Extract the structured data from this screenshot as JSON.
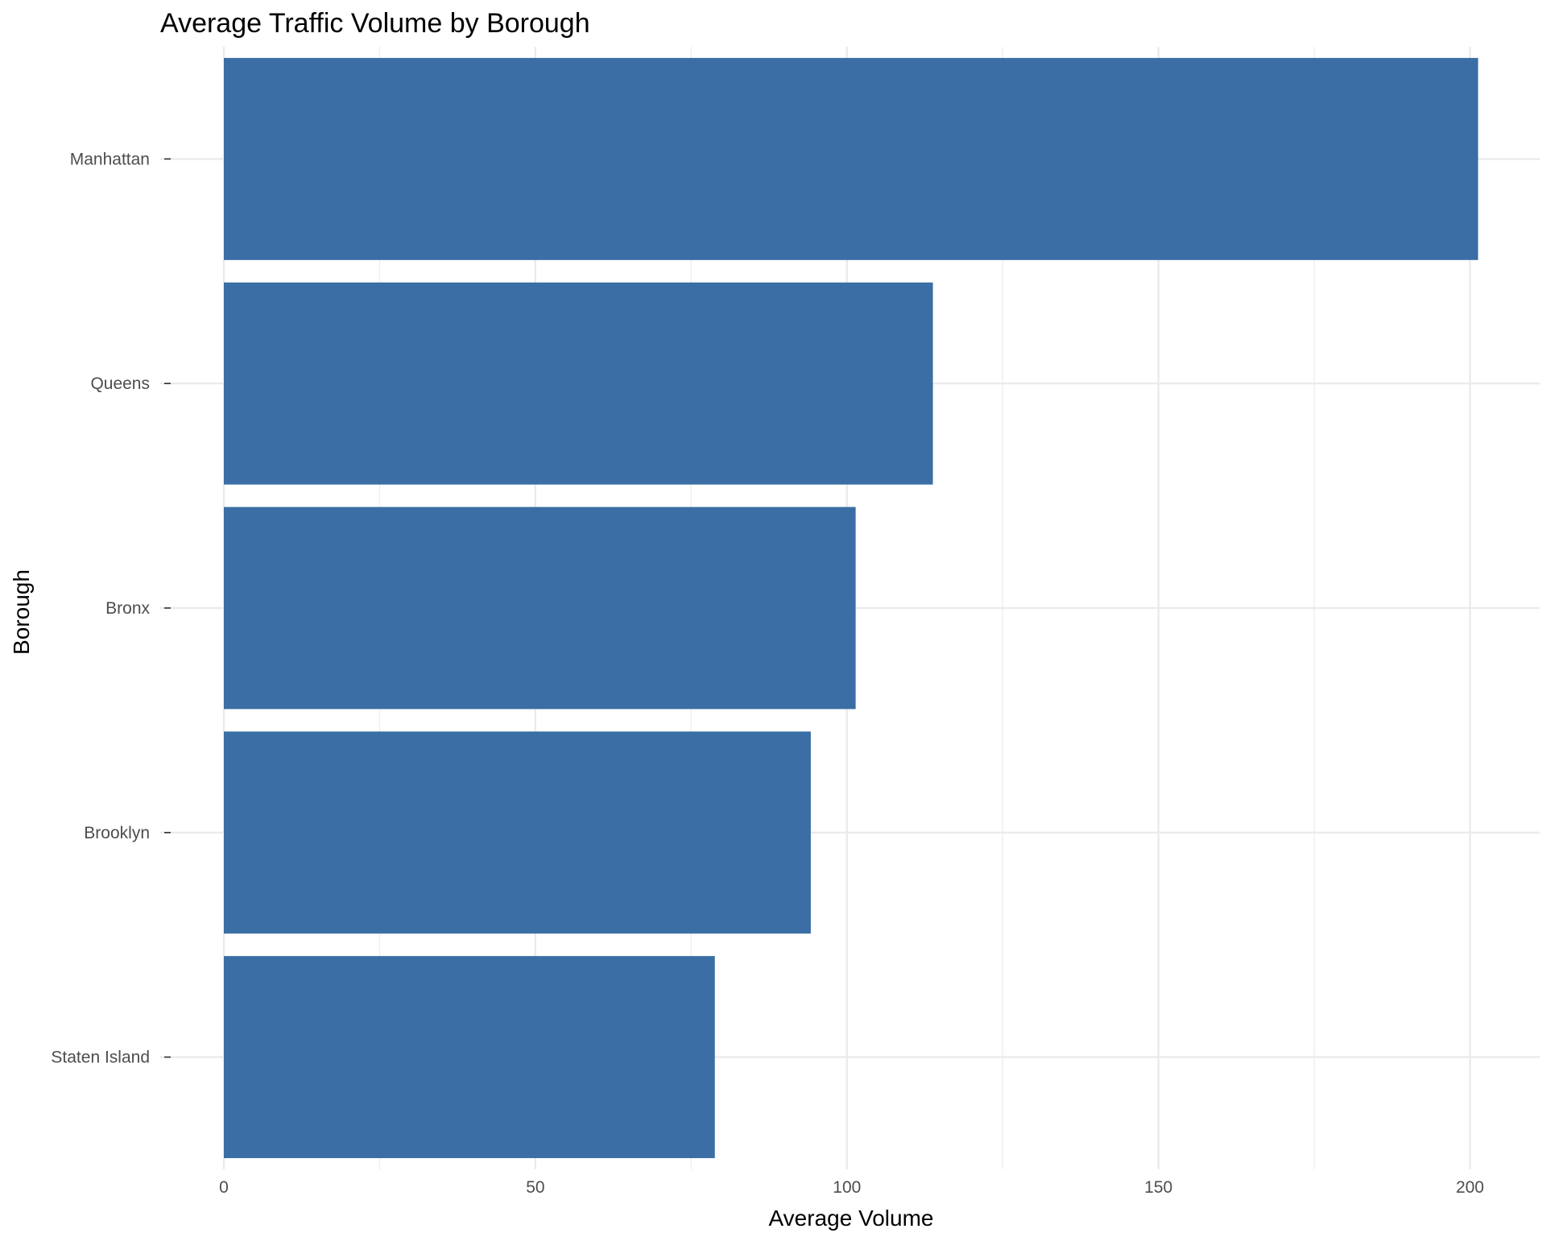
{
  "chart_data": {
    "type": "bar",
    "orientation": "horizontal",
    "title": "Average Traffic Volume by Borough",
    "xlabel": "Average Volume",
    "ylabel": "Borough",
    "categories": [
      "Manhattan",
      "Queens",
      "Bronx",
      "Brooklyn",
      "Staten Island"
    ],
    "values": [
      201.3,
      113.8,
      101.4,
      94.2,
      78.8
    ],
    "xlim": [
      0,
      210
    ],
    "x_ticks": [
      "0",
      "50",
      "100",
      "150",
      "200"
    ],
    "grid": true,
    "legend": "none",
    "colors": {
      "bar": "#3a6ea5",
      "grid": "#ebebeb",
      "background": "#ffffff"
    }
  }
}
